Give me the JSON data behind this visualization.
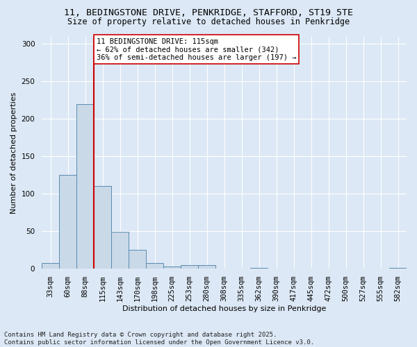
{
  "title_line1": "11, BEDINGSTONE DRIVE, PENKRIDGE, STAFFORD, ST19 5TE",
  "title_line2": "Size of property relative to detached houses in Penkridge",
  "xlabel": "Distribution of detached houses by size in Penkridge",
  "ylabel": "Number of detached properties",
  "categories": [
    "33sqm",
    "60sqm",
    "88sqm",
    "115sqm",
    "143sqm",
    "170sqm",
    "198sqm",
    "225sqm",
    "253sqm",
    "280sqm",
    "308sqm",
    "335sqm",
    "362sqm",
    "390sqm",
    "417sqm",
    "445sqm",
    "472sqm",
    "500sqm",
    "527sqm",
    "555sqm",
    "582sqm"
  ],
  "values": [
    8,
    125,
    220,
    110,
    49,
    25,
    8,
    3,
    5,
    5,
    0,
    0,
    1,
    0,
    0,
    0,
    0,
    0,
    0,
    0,
    1
  ],
  "bar_color": "#c9d9e8",
  "bar_edge_color": "#5a8ab0",
  "vline_index": 3,
  "vline_color": "#cc0000",
  "annotation_text": "11 BEDINGSTONE DRIVE: 115sqm\n← 62% of detached houses are smaller (342)\n36% of semi-detached houses are larger (197) →",
  "annotation_box_color": "#ffffff",
  "annotation_box_edge_color": "#cc0000",
  "ylim": [
    0,
    310
  ],
  "yticks": [
    0,
    50,
    100,
    150,
    200,
    250,
    300
  ],
  "background_color": "#dce8f5",
  "plot_bg_color": "#dce8f5",
  "footnote": "Contains HM Land Registry data © Crown copyright and database right 2025.\nContains public sector information licensed under the Open Government Licence v3.0.",
  "title_fontsize": 9.5,
  "subtitle_fontsize": 8.5,
  "label_fontsize": 8,
  "tick_fontsize": 7.5,
  "annot_fontsize": 7.5,
  "footnote_fontsize": 6.5
}
